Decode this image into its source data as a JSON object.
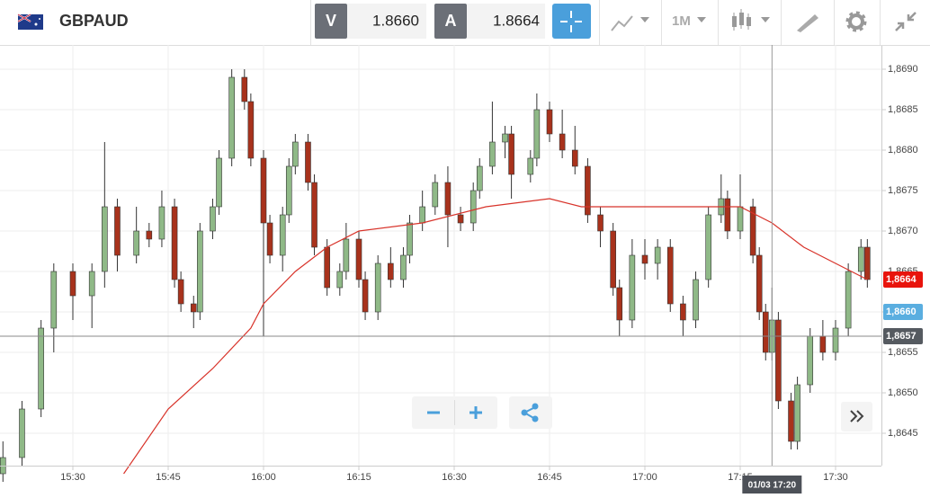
{
  "toolbar": {
    "symbol": "GBPAUD",
    "bid_label": "V",
    "bid": "1.8660",
    "ask_label": "A",
    "ask": "1.8664",
    "interval": "1M"
  },
  "chart_data": {
    "type": "candlestick",
    "x": [
      "15:19",
      "15:22",
      "15:25",
      "15:27",
      "15:30",
      "15:33",
      "15:35",
      "15:37",
      "15:40",
      "15:42",
      "15:44",
      "15:46",
      "15:47",
      "15:49",
      "15:50",
      "15:52",
      "15:53",
      "15:55",
      "15:57",
      "15:58",
      "16:00",
      "16:01",
      "16:03",
      "16:04",
      "16:05",
      "16:07",
      "16:08",
      "16:10",
      "16:12",
      "16:13",
      "16:15",
      "16:16",
      "16:18",
      "16:20",
      "16:22",
      "16:23",
      "16:25",
      "16:27",
      "16:29",
      "16:31",
      "16:33",
      "16:34",
      "16:36",
      "16:38",
      "16:39",
      "16:42",
      "16:43",
      "16:45",
      "16:47",
      "16:49",
      "16:51",
      "16:53",
      "16:55",
      "16:56",
      "16:58",
      "17:00",
      "17:02",
      "17:04",
      "17:06",
      "17:08",
      "17:10",
      "17:12",
      "17:13",
      "17:15",
      "17:17",
      "17:18",
      "17:19",
      "17:20",
      "17:21",
      "17:23",
      "17:24",
      "17:26",
      "17:28",
      "17:30",
      "17:32",
      "17:34",
      "17:35"
    ],
    "open": [
      1.864,
      1.8642,
      1.8648,
      1.8658,
      1.8665,
      1.8662,
      1.8665,
      1.8673,
      1.8667,
      1.867,
      1.8669,
      1.8673,
      1.8664,
      1.8661,
      1.866,
      1.867,
      1.8673,
      1.8679,
      1.8689,
      1.8686,
      1.8679,
      1.8671,
      1.8667,
      1.8672,
      1.8678,
      1.8681,
      1.8676,
      1.8668,
      1.8663,
      1.8665,
      1.8669,
      1.8664,
      1.866,
      1.8666,
      1.8664,
      1.8667,
      1.8671,
      1.8673,
      1.8676,
      1.8672,
      1.8671,
      1.8675,
      1.8678,
      1.8681,
      1.8682,
      1.8677,
      1.8679,
      1.8685,
      1.8682,
      1.868,
      1.8678,
      1.8672,
      1.867,
      1.8663,
      1.8659,
      1.8667,
      1.8666,
      1.8668,
      1.8661,
      1.8659,
      1.8664,
      1.8672,
      1.8674,
      1.867,
      1.8673,
      1.8667,
      1.866,
      1.8655,
      1.8659,
      1.8649,
      1.8644,
      1.8651,
      1.8657,
      1.8655,
      1.8658,
      1.8665,
      1.8668
    ],
    "high": [
      1.8644,
      1.8649,
      1.8659,
      1.8666,
      1.8666,
      1.8666,
      1.8681,
      1.8674,
      1.8673,
      1.8671,
      1.8675,
      1.8674,
      1.8665,
      1.8662,
      1.8671,
      1.8674,
      1.868,
      1.869,
      1.869,
      1.8687,
      1.868,
      1.8672,
      1.8673,
      1.8679,
      1.8682,
      1.8682,
      1.8677,
      1.8669,
      1.8666,
      1.8671,
      1.867,
      1.8665,
      1.8667,
      1.8668,
      1.8668,
      1.8672,
      1.8675,
      1.8677,
      1.8678,
      1.8673,
      1.8676,
      1.8679,
      1.8686,
      1.8683,
      1.8683,
      1.868,
      1.8687,
      1.8686,
      1.8685,
      1.8683,
      1.8679,
      1.8673,
      1.8671,
      1.8664,
      1.8669,
      1.8669,
      1.8669,
      1.8669,
      1.8662,
      1.8665,
      1.8673,
      1.8677,
      1.8675,
      1.8677,
      1.8674,
      1.8668,
      1.8661,
      1.8663,
      1.866,
      1.865,
      1.8652,
      1.8658,
      1.8659,
      1.8659,
      1.8666,
      1.8669,
      1.8669
    ],
    "low": [
      1.8639,
      1.8641,
      1.8647,
      1.8655,
      1.8659,
      1.8658,
      1.8663,
      1.8665,
      1.8666,
      1.8668,
      1.8668,
      1.8663,
      1.866,
      1.8658,
      1.8659,
      1.8669,
      1.8672,
      1.8678,
      1.8685,
      1.8678,
      1.8657,
      1.8666,
      1.8665,
      1.8671,
      1.8677,
      1.8675,
      1.8667,
      1.8662,
      1.8662,
      1.8664,
      1.8663,
      1.8659,
      1.8659,
      1.8663,
      1.8663,
      1.8666,
      1.867,
      1.8672,
      1.8668,
      1.867,
      1.867,
      1.8674,
      1.8677,
      1.8679,
      1.8674,
      1.8676,
      1.8678,
      1.8681,
      1.8679,
      1.8677,
      1.8671,
      1.8668,
      1.8662,
      1.8657,
      1.8658,
      1.8664,
      1.8664,
      1.866,
      1.8657,
      1.8658,
      1.8663,
      1.8671,
      1.8669,
      1.8669,
      1.8666,
      1.8659,
      1.8654,
      1.8654,
      1.8648,
      1.8643,
      1.8643,
      1.865,
      1.8654,
      1.8654,
      1.8657,
      1.8664,
      1.8663
    ],
    "close": [
      1.8642,
      1.8648,
      1.8658,
      1.8665,
      1.8662,
      1.8665,
      1.8673,
      1.8667,
      1.867,
      1.8669,
      1.8673,
      1.8664,
      1.8661,
      1.866,
      1.867,
      1.8673,
      1.8679,
      1.8689,
      1.8686,
      1.8679,
      1.8671,
      1.8667,
      1.8672,
      1.8678,
      1.8681,
      1.8676,
      1.8668,
      1.8663,
      1.8665,
      1.8669,
      1.8664,
      1.866,
      1.8666,
      1.8664,
      1.8667,
      1.8671,
      1.8673,
      1.8676,
      1.8672,
      1.8671,
      1.8675,
      1.8678,
      1.8681,
      1.8682,
      1.8677,
      1.8679,
      1.8685,
      1.8682,
      1.868,
      1.8678,
      1.8672,
      1.867,
      1.8663,
      1.8659,
      1.8667,
      1.8666,
      1.8668,
      1.8661,
      1.8659,
      1.8664,
      1.8672,
      1.8674,
      1.867,
      1.8673,
      1.8667,
      1.866,
      1.8655,
      1.8659,
      1.8649,
      1.8644,
      1.8651,
      1.8657,
      1.8655,
      1.8658,
      1.8665,
      1.8668,
      1.8664
    ],
    "up_color": "#8fb987",
    "down_color": "#a8321c",
    "overlay": {
      "color": "#d8332a",
      "x": [
        "15:38",
        "15:45",
        "15:52",
        "15:58",
        "16:00",
        "16:05",
        "16:10",
        "16:15",
        "16:25",
        "16:35",
        "16:45",
        "16:50",
        "17:00",
        "17:10",
        "17:15",
        "17:20",
        "17:25",
        "17:30",
        "17:35"
      ],
      "values": [
        1.864,
        1.8648,
        1.8653,
        1.8658,
        1.8661,
        1.8665,
        1.8668,
        1.867,
        1.8671,
        1.8673,
        1.8674,
        1.8673,
        1.8673,
        1.8673,
        1.8673,
        1.8671,
        1.8668,
        1.8666,
        1.8664
      ]
    },
    "ylim": [
      1.8641,
      1.8693
    ],
    "yticks": [
      {
        "value": 1.8645,
        "label": "1,8645"
      },
      {
        "value": 1.865,
        "label": "1,8650"
      },
      {
        "value": 1.8655,
        "label": "1,8655"
      },
      {
        "value": 1.866,
        "label": "1,8660"
      },
      {
        "value": 1.8665,
        "label": "1,8665"
      },
      {
        "value": 1.867,
        "label": "1,8670"
      },
      {
        "value": 1.8675,
        "label": "1,8675"
      },
      {
        "value": 1.868,
        "label": "1,8680"
      },
      {
        "value": 1.8685,
        "label": "1,8685"
      },
      {
        "value": 1.869,
        "label": "1,8690"
      }
    ],
    "xticks": [
      "15:30",
      "15:45",
      "16:00",
      "16:15",
      "16:30",
      "16:45",
      "17:00",
      "17:15",
      "17:30"
    ],
    "price_labels": [
      {
        "value": 1.8664,
        "label": "1,8664",
        "color": "#e8140c"
      },
      {
        "value": 1.866,
        "label": "1,8660",
        "color": "#5aaee0"
      },
      {
        "value": 1.8657,
        "label": "1,8657",
        "color": "#555a60"
      }
    ],
    "crosshair_label": "01/03 17:20",
    "grid": true
  }
}
